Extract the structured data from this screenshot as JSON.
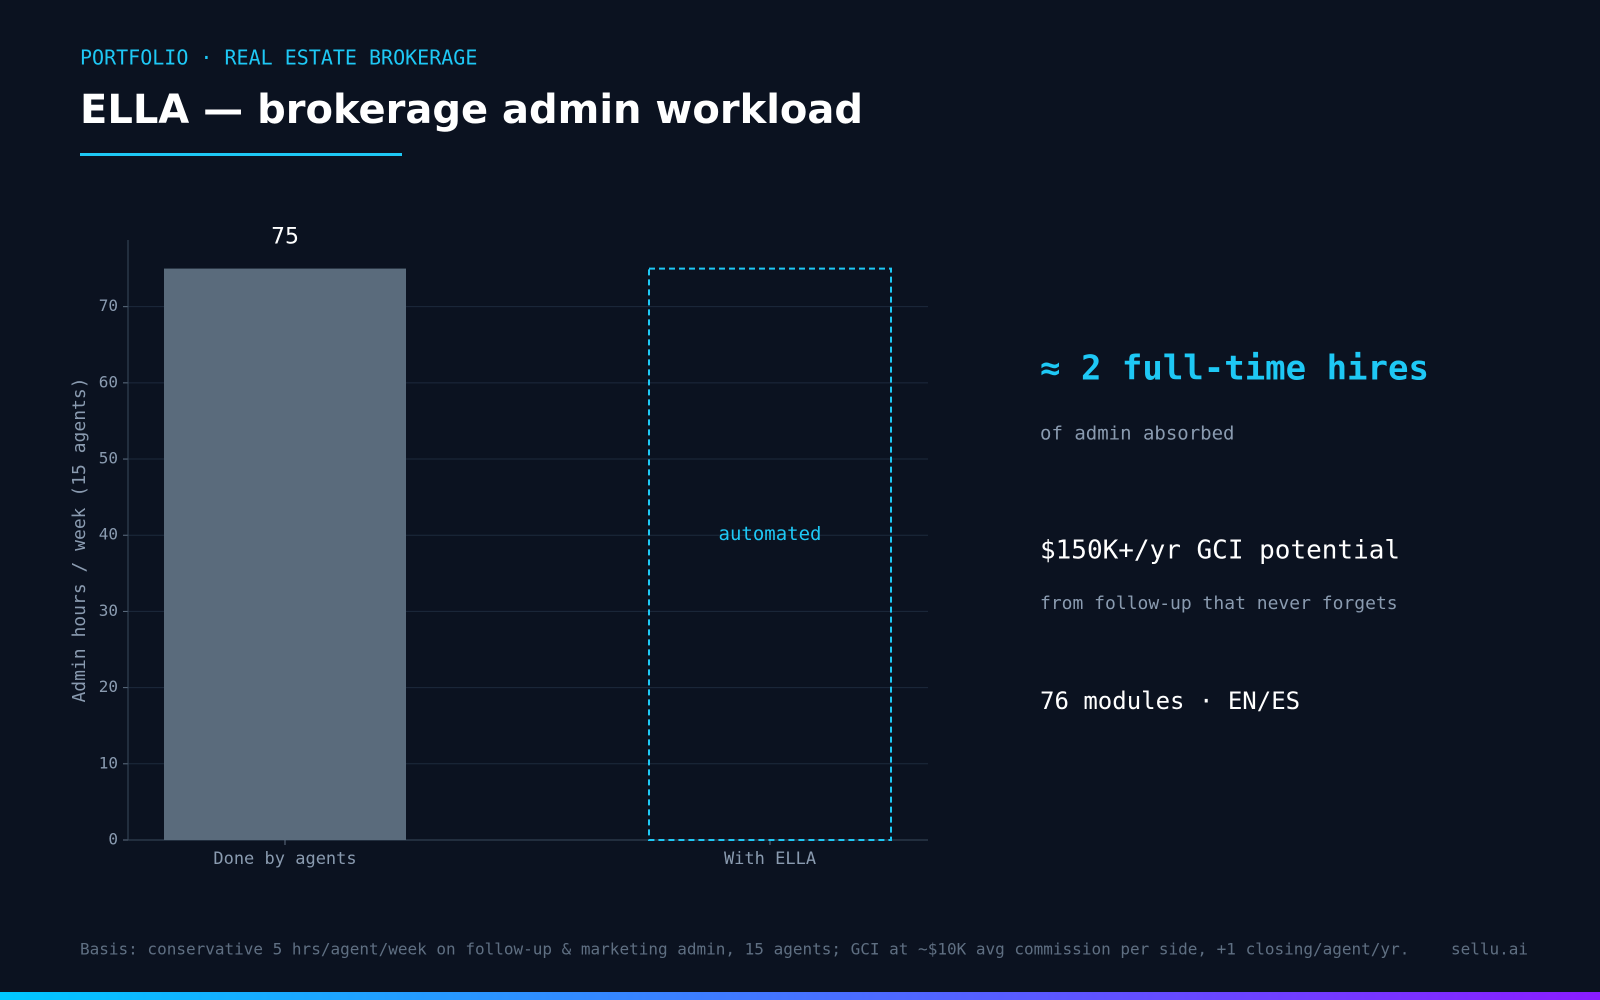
{
  "header": {
    "kicker": "PORTFOLIO · REAL ESTATE BROKERAGE",
    "title": "ELLA — brokerage admin workload"
  },
  "chart_data": {
    "type": "bar",
    "categories": [
      "Done by agents",
      "With ELLA"
    ],
    "values": [
      75,
      75
    ],
    "styles": [
      "solid",
      "dashed"
    ],
    "colors": [
      "#5a6b7c",
      "#1ec8f5"
    ],
    "annotation": "automated",
    "ylabel": "Admin hours / week (15 agents)",
    "ylim": [
      0,
      78.75
    ],
    "yticks": [
      0,
      10,
      20,
      30,
      40,
      50,
      60,
      70
    ],
    "grid": true
  },
  "highlights": [
    {
      "headline": "≈ 2 full-time hires",
      "detail": "of admin absorbed"
    },
    {
      "headline": "$150K+/yr GCI potential",
      "detail": "from follow-up that never forgets"
    },
    {
      "headline": "76 modules · EN/ES"
    }
  ],
  "footer": {
    "note": "Basis: conservative 5 hrs/agent/week on follow-up & marketing admin, 15 agents; GCI at ~$10K avg commission per side, +1 closing/agent/yr.",
    "brand": "sellu.ai"
  }
}
